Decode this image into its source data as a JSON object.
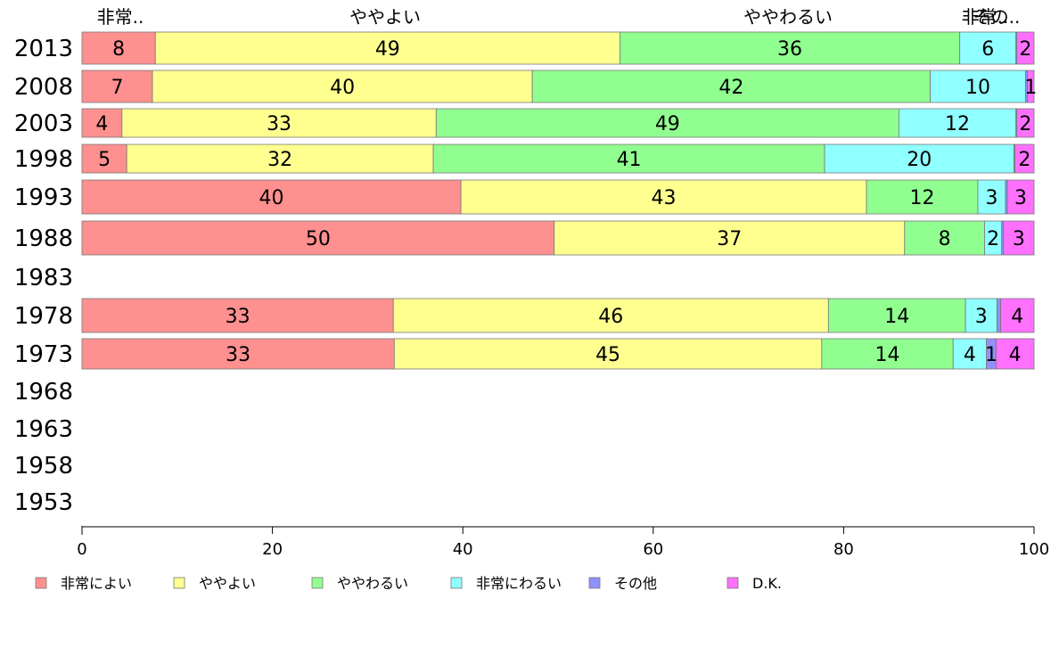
{
  "chart_data": {
    "type": "bar",
    "orientation": "horizontal",
    "stacked": true,
    "title": "",
    "xlabel": "",
    "ylabel": "",
    "xlim": [
      0,
      100
    ],
    "xticks": [
      0,
      20,
      40,
      60,
      80,
      100
    ],
    "categories": [
      "2013",
      "2008",
      "2003",
      "1998",
      "1993",
      "1988",
      "1983",
      "1978",
      "1973",
      "1968",
      "1963",
      "1958",
      "1953"
    ],
    "top_labels": [
      "非常..",
      "ややよい",
      "ややわるい",
      "非常..",
      "その.."
    ],
    "series": [
      {
        "name": "非常によい",
        "color": "#ff9090",
        "values": [
          7.7,
          7.4,
          4.2,
          4.7,
          39.8,
          49.6,
          null,
          32.7,
          32.8,
          null,
          null,
          null,
          null
        ]
      },
      {
        "name": "ややよい",
        "color": "#ffff90",
        "values": [
          48.8,
          39.9,
          33.0,
          32.2,
          42.6,
          36.8,
          null,
          45.7,
          44.9,
          null,
          null,
          null,
          null
        ]
      },
      {
        "name": "ややわるい",
        "color": "#90ff90",
        "values": [
          35.7,
          41.8,
          48.6,
          41.1,
          11.7,
          8.4,
          null,
          14.4,
          13.8,
          null,
          null,
          null,
          null
        ]
      },
      {
        "name": "非常にわるい",
        "color": "#90ffff",
        "values": [
          5.9,
          10.0,
          12.3,
          19.9,
          2.9,
          1.8,
          null,
          3.3,
          3.5,
          null,
          null,
          null,
          null
        ]
      },
      {
        "name": "その他",
        "color": "#9090ff",
        "values": [
          0.1,
          0.2,
          0.1,
          0.1,
          0.2,
          0.2,
          null,
          0.4,
          1.0,
          null,
          null,
          null,
          null
        ]
      },
      {
        "name": "D.K.",
        "color": "#ff70ff",
        "values": [
          1.8,
          0.7,
          1.8,
          2.0,
          2.8,
          3.2,
          null,
          3.5,
          4.0,
          null,
          null,
          null,
          null
        ]
      }
    ],
    "segment_labels": [
      [
        "8",
        "49",
        "36",
        "6",
        "",
        "2"
      ],
      [
        "7",
        "40",
        "42",
        "10",
        "",
        "1"
      ],
      [
        "4",
        "33",
        "49",
        "12",
        "",
        "2"
      ],
      [
        "5",
        "32",
        "41",
        "20",
        "",
        "2"
      ],
      [
        "40",
        "43",
        "12",
        "3",
        "",
        "3"
      ],
      [
        "50",
        "37",
        "8",
        "2",
        "",
        "3"
      ],
      [
        "",
        "",
        "",
        "",
        "",
        ""
      ],
      [
        "33",
        "46",
        "14",
        "3",
        "",
        "4"
      ],
      [
        "33",
        "45",
        "14",
        "4",
        "1",
        "4"
      ],
      [
        "",
        "",
        "",
        "",
        "",
        ""
      ],
      [
        "",
        "",
        "",
        "",
        "",
        ""
      ],
      [
        "",
        "",
        "",
        "",
        "",
        ""
      ],
      [
        "",
        "",
        "",
        "",
        "",
        ""
      ]
    ],
    "grid": false,
    "legend_position": "bottom"
  }
}
